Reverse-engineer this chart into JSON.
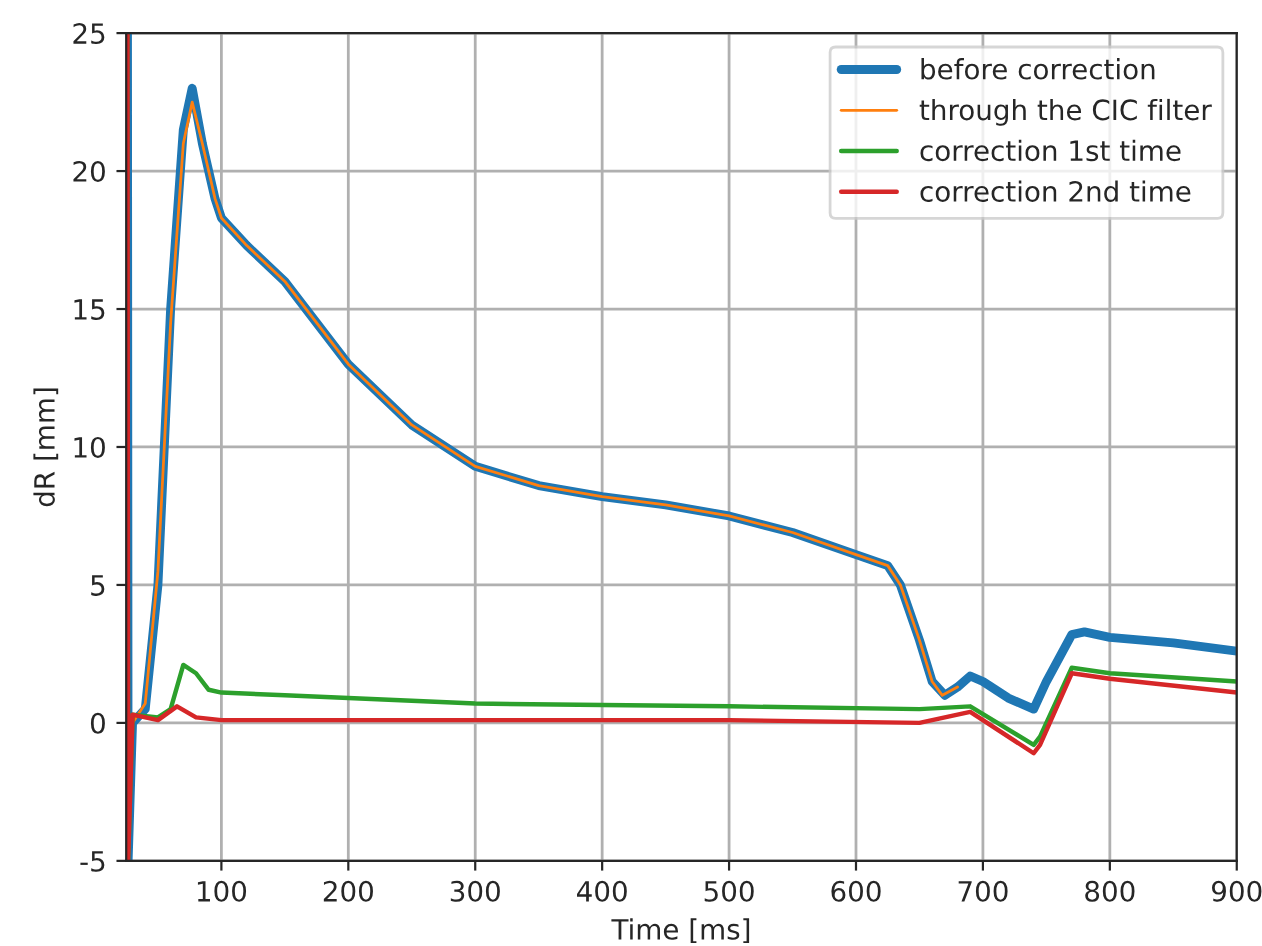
{
  "chart_data": {
    "type": "line",
    "xlabel": "Time [ms]",
    "ylabel": "dR [mm]",
    "xlim": [
      25,
      900
    ],
    "xticks": [
      100,
      200,
      300,
      400,
      500,
      600,
      700,
      800,
      900
    ],
    "ylim": [
      -5,
      25
    ],
    "yticks": [
      -5,
      0,
      5,
      10,
      15,
      20,
      25
    ],
    "grid": true,
    "legend": "top right",
    "series": [
      {
        "name": "before correction",
        "color": "#1f77b4",
        "x": [
          26,
          26.5,
          30,
          40,
          50,
          60,
          70,
          77,
          85,
          95,
          100,
          120,
          150,
          200,
          250,
          300,
          350,
          400,
          450,
          500,
          550,
          600,
          625,
          635,
          650,
          660,
          670,
          680,
          690,
          700,
          720,
          740,
          750,
          770,
          780,
          800,
          850,
          900
        ],
        "values": [
          25,
          -5,
          0,
          0.5,
          5,
          15,
          21.5,
          23,
          21,
          19,
          18.3,
          17.3,
          16,
          13,
          10.8,
          9.3,
          8.6,
          8.2,
          7.9,
          7.5,
          6.9,
          6.1,
          5.7,
          5.0,
          3,
          1.5,
          1.0,
          1.3,
          1.7,
          1.5,
          0.9,
          0.5,
          1.5,
          3.2,
          3.3,
          3.1,
          2.9,
          2.6
        ]
      },
      {
        "name": "through the CIC filter",
        "color": "#ff7f0e",
        "x": [
          30,
          40,
          50,
          60,
          70,
          77,
          85,
          95,
          100,
          120,
          150,
          200,
          250,
          300,
          350,
          400,
          450,
          500,
          550,
          600,
          625,
          635,
          650,
          660,
          668,
          680
        ],
        "values": [
          0,
          0.7,
          5.5,
          14.5,
          21,
          22.5,
          21,
          19,
          18.3,
          17.3,
          16,
          13,
          10.8,
          9.3,
          8.6,
          8.2,
          7.9,
          7.5,
          6.9,
          6.1,
          5.7,
          5.0,
          3,
          1.5,
          1.0,
          1.3
        ]
      },
      {
        "name": "correction 1st time",
        "color": "#2ca02c",
        "x": [
          26,
          26.5,
          30,
          50,
          60,
          70,
          80,
          90,
          100,
          150,
          200,
          300,
          400,
          500,
          650,
          690,
          740,
          745,
          770,
          800,
          900
        ],
        "values": [
          25,
          -5,
          0.3,
          0.2,
          0.5,
          2.1,
          1.8,
          1.2,
          1.1,
          1.0,
          0.9,
          0.7,
          0.65,
          0.6,
          0.5,
          0.6,
          -0.8,
          -0.5,
          2.0,
          1.8,
          1.5
        ]
      },
      {
        "name": "correction 2nd time",
        "color": "#d62728",
        "x": [
          26,
          26.5,
          30,
          50,
          65,
          80,
          100,
          200,
          300,
          400,
          500,
          650,
          690,
          740,
          745,
          770,
          800,
          900
        ],
        "values": [
          25,
          -5,
          0.3,
          0.1,
          0.6,
          0.2,
          0.1,
          0.1,
          0.1,
          0.1,
          0.1,
          0.0,
          0.4,
          -1.1,
          -0.8,
          1.8,
          1.6,
          1.1
        ]
      }
    ]
  }
}
